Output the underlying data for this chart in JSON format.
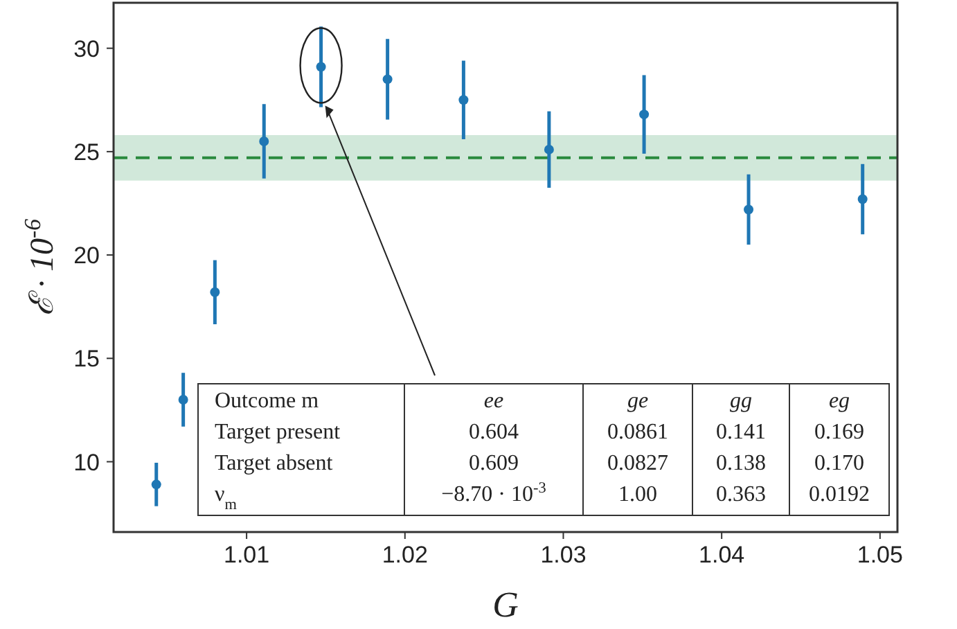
{
  "chart_data": {
    "type": "scatter",
    "xlabel": "G",
    "ylabel": "ℰ · 10$^{-6}$",
    "x": [
      1.0043,
      1.006,
      1.008,
      1.0111,
      1.0147,
      1.0189,
      1.0237,
      1.0291,
      1.0351,
      1.0417,
      1.0489
    ],
    "series": [
      {
        "color": "#1f77b4",
        "values": [
          8.9,
          13.0,
          18.2,
          25.5,
          29.1,
          28.5,
          27.5,
          25.1,
          26.8,
          22.2,
          22.7
        ],
        "errors": [
          1.05,
          1.3,
          1.55,
          1.8,
          1.95,
          1.95,
          1.9,
          1.85,
          1.9,
          1.7,
          1.7
        ]
      }
    ],
    "xlim": [
      1.0016,
      1.0511
    ],
    "xticks": [
      {
        "value": 1.01,
        "label": "1.01"
      },
      {
        "value": 1.02,
        "label": "1.02"
      },
      {
        "value": 1.03,
        "label": "1.03"
      },
      {
        "value": 1.04,
        "label": "1.04"
      },
      {
        "value": 1.05,
        "label": "1.05"
      }
    ],
    "ylim": [
      6.6,
      32.2
    ],
    "yticks": [
      10,
      15,
      20,
      25,
      30
    ],
    "ref_lines": [
      {
        "axis": "y",
        "value": 24.7,
        "color": "#2a8a3e",
        "line_style": "dashed"
      }
    ],
    "bands": [
      {
        "axis": "y",
        "from": 23.6,
        "to": 25.8,
        "color": "#d1e8da"
      }
    ],
    "marker": "circle",
    "grid": false,
    "annotations": [
      "Outcome m",
      "ee",
      "ge",
      "gg",
      "eg",
      "Target present",
      "0.604",
      "0.0861",
      "0.141",
      "0.169",
      "Target absent",
      "0.609",
      "0.0827",
      "0.138",
      "0.170",
      "ν$_{m}$",
      "−8.70 · 10$^{-3}$",
      "1.00",
      "0.363",
      "0.0192"
    ]
  }
}
